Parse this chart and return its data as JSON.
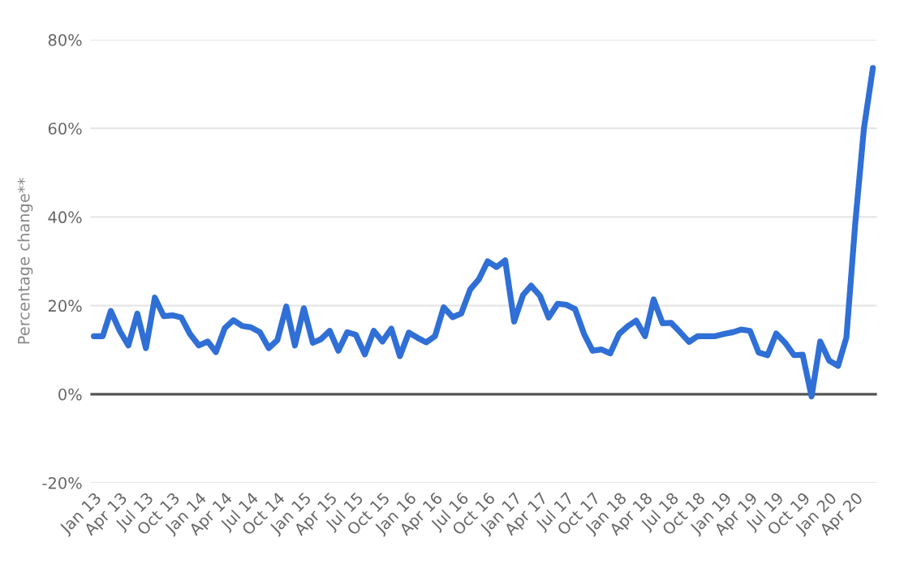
{
  "chart_data": {
    "type": "line",
    "ylabel": "Percentage change**",
    "x": [
      "2013-01",
      "2013-02",
      "2013-03",
      "2013-04",
      "2013-05",
      "2013-06",
      "2013-07",
      "2013-08",
      "2013-09",
      "2013-10",
      "2013-11",
      "2013-12",
      "2014-01",
      "2014-02",
      "2014-03",
      "2014-04",
      "2014-05",
      "2014-06",
      "2014-07",
      "2014-08",
      "2014-09",
      "2014-10",
      "2014-11",
      "2014-12",
      "2015-01",
      "2015-02",
      "2015-03",
      "2015-04",
      "2015-05",
      "2015-06",
      "2015-07",
      "2015-08",
      "2015-09",
      "2015-10",
      "2015-11",
      "2015-12",
      "2016-01",
      "2016-02",
      "2016-03",
      "2016-04",
      "2016-05",
      "2016-06",
      "2016-07",
      "2016-08",
      "2016-09",
      "2016-10",
      "2016-11",
      "2016-12",
      "2017-01",
      "2017-02",
      "2017-03",
      "2017-04",
      "2017-05",
      "2017-06",
      "2017-07",
      "2017-08",
      "2017-09",
      "2017-10",
      "2017-11",
      "2017-12",
      "2018-01",
      "2018-02",
      "2018-03",
      "2018-04",
      "2018-05",
      "2018-06",
      "2018-07",
      "2018-08",
      "2018-09",
      "2018-10",
      "2018-11",
      "2018-12",
      "2019-01",
      "2019-02",
      "2019-03",
      "2019-04",
      "2019-05",
      "2019-06",
      "2019-07",
      "2019-08",
      "2019-09",
      "2019-10",
      "2019-11",
      "2019-12",
      "2020-01",
      "2020-02",
      "2020-03",
      "2020-04",
      "2020-05",
      "2020-06"
    ],
    "series": [
      {
        "color": "#2f6fd6",
        "values": [
          13.1,
          13.1,
          18.8,
          14.3,
          11,
          18.2,
          10.4,
          21.8,
          17.6,
          17.8,
          17.3,
          13.6,
          11,
          11.9,
          9.5,
          14.9,
          16.7,
          15.4,
          15.1,
          14,
          10.4,
          12.2,
          19.8,
          11,
          19.4,
          11.6,
          12.4,
          14.3,
          9.8,
          14,
          13.4,
          9,
          14.3,
          11.9,
          14.8,
          8.6,
          13.9,
          12.7,
          11.7,
          13.1,
          19.6,
          17.4,
          18.2,
          23.6,
          26,
          30,
          28.7,
          30.2,
          16.4,
          22.4,
          24.5,
          22.2,
          17.3,
          20.4,
          20.2,
          19.2,
          13.6,
          9.8,
          10.1,
          9.2,
          13.6,
          15.4,
          16.6,
          13.1,
          21.4,
          16,
          16.1,
          14,
          11.8,
          13.1,
          13.1,
          13.1,
          13.6,
          14,
          14.6,
          14.3,
          9.4,
          8.8,
          13.7,
          11.6,
          8.8,
          8.9,
          -0.5,
          11.9,
          7.6,
          6.4,
          12.8,
          38.7,
          60,
          73.6
        ]
      }
    ],
    "xlim": [
      "2012-12-20",
      "2020-06-15"
    ],
    "xticks": [
      {
        "value": "2013-01",
        "label": "Jan 13"
      },
      {
        "value": "2013-04",
        "label": "Apr 13"
      },
      {
        "value": "2013-07",
        "label": "Jul 13"
      },
      {
        "value": "2013-10",
        "label": "Oct 13"
      },
      {
        "value": "2014-01",
        "label": "Jan 14"
      },
      {
        "value": "2014-04",
        "label": "Apr 14"
      },
      {
        "value": "2014-07",
        "label": "Jul 14"
      },
      {
        "value": "2014-10",
        "label": "Oct 14"
      },
      {
        "value": "2015-01",
        "label": "Jan 15"
      },
      {
        "value": "2015-04",
        "label": "Apr 15"
      },
      {
        "value": "2015-07",
        "label": "Jul 15"
      },
      {
        "value": "2015-10",
        "label": "Oct 15"
      },
      {
        "value": "2016-01",
        "label": "Jan 16"
      },
      {
        "value": "2016-04",
        "label": "Apr 16"
      },
      {
        "value": "2016-07",
        "label": "Jul 16"
      },
      {
        "value": "2016-10",
        "label": "Oct 16"
      },
      {
        "value": "2017-01",
        "label": "Jan 17"
      },
      {
        "value": "2017-04",
        "label": "Apr 17"
      },
      {
        "value": "2017-07",
        "label": "Jul 17"
      },
      {
        "value": "2017-10",
        "label": "Oct 17"
      },
      {
        "value": "2018-01",
        "label": "Jan 18"
      },
      {
        "value": "2018-04",
        "label": "Apr 18"
      },
      {
        "value": "2018-07",
        "label": "Jul 18"
      },
      {
        "value": "2018-10",
        "label": "Oct 18"
      },
      {
        "value": "2019-01",
        "label": "Jan 19"
      },
      {
        "value": "2019-04",
        "label": "Apr 19"
      },
      {
        "value": "2019-07",
        "label": "Jul 19"
      },
      {
        "value": "2019-10",
        "label": "Oct 19"
      },
      {
        "value": "2020-01",
        "label": "Jan 20"
      },
      {
        "value": "2020-04",
        "label": "Apr 20"
      }
    ],
    "ylim": [
      -20,
      80
    ],
    "yticks": [
      {
        "value": -20,
        "label": "-20%"
      },
      {
        "value": 0,
        "label": "0%"
      },
      {
        "value": 20,
        "label": "20%"
      },
      {
        "value": 40,
        "label": "40%"
      },
      {
        "value": 60,
        "label": "60%"
      },
      {
        "value": 80,
        "label": "80%"
      }
    ],
    "ref_lines": [
      {
        "axis": "y",
        "value": 0,
        "color": "#555555"
      }
    ],
    "grid": "y",
    "marker": "none",
    "line_style": "solid"
  }
}
